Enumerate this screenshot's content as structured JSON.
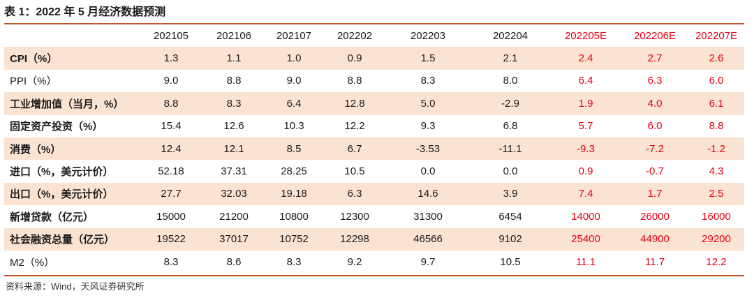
{
  "title": "表 1：2022 年 5 月经济数据预测",
  "columns": [
    "",
    "202105",
    "202106",
    "202107",
    "202202",
    "202203",
    "202204",
    "202205E",
    "202206E",
    "202207E"
  ],
  "forecast_columns": [
    "202205E",
    "202206E",
    "202207E"
  ],
  "rows": [
    {
      "label": "CPI（%）",
      "values": [
        "1.3",
        "1.1",
        "1.0",
        "0.9",
        "1.5",
        "2.1",
        "2.4",
        "2.7",
        "2.6"
      ]
    },
    {
      "label": "PPI（%）",
      "values": [
        "9.0",
        "8.8",
        "9.0",
        "8.8",
        "8.3",
        "8.0",
        "6.4",
        "6.3",
        "6.0"
      ]
    },
    {
      "label": "工业增加值（当月，%）",
      "values": [
        "8.8",
        "8.3",
        "6.4",
        "12.8",
        "5.0",
        "-2.9",
        "1.9",
        "4.0",
        "6.1"
      ]
    },
    {
      "label": "固定资产投资（%）",
      "values": [
        "15.4",
        "12.6",
        "10.3",
        "12.2",
        "9.3",
        "6.8",
        "5.7",
        "6.0",
        "8.8"
      ]
    },
    {
      "label": "消费（%）",
      "values": [
        "12.4",
        "12.1",
        "8.5",
        "6.7",
        "-3.53",
        "-11.1",
        "-9.3",
        "-7.2",
        "-1.2"
      ]
    },
    {
      "label": "进口（%，美元计价）",
      "values": [
        "52.18",
        "37.31",
        "28.25",
        "10.5",
        "0.0",
        "0.0",
        "0.9",
        "-0.7",
        "4.3"
      ]
    },
    {
      "label": "出口（%，美元计价）",
      "values": [
        "27.7",
        "32.03",
        "19.18",
        "6.3",
        "14.6",
        "3.9",
        "7.4",
        "1.7",
        "2.5"
      ]
    },
    {
      "label": "新增贷款（亿元）",
      "values": [
        "15000",
        "21200",
        "10800",
        "12300",
        "31300",
        "6454",
        "14000",
        "26000",
        "16000"
      ]
    },
    {
      "label": "社会融资总量（亿元）",
      "values": [
        "19522",
        "37017",
        "10752",
        "12298",
        "46566",
        "9102",
        "25400",
        "44900",
        "29200"
      ]
    },
    {
      "label": "M2（%）",
      "values": [
        "8.3",
        "8.6",
        "8.3",
        "9.2",
        "9.7",
        "10.5",
        "11.1",
        "11.7",
        "12.2"
      ]
    }
  ],
  "source": "资料来源：Wind，天风证券研究所",
  "colors": {
    "accent_rule": "#c0582a",
    "shade": "#fbe3d2",
    "forecast_text": "#e60012"
  }
}
